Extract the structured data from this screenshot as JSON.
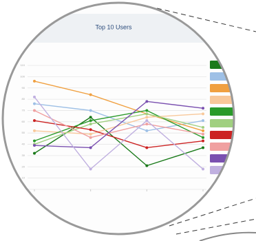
{
  "chart_data": {
    "type": "line",
    "title": "Top 10 Users",
    "categories": [
      null,
      null,
      null,
      null
    ],
    "ylim": [
      0,
      110
    ],
    "yticks": [
      0,
      10,
      20,
      30,
      40,
      50,
      60,
      70,
      80,
      90,
      100,
      110
    ],
    "grid": true,
    "series": [
      {
        "color": "#1a7a1a",
        "values": [
          32,
          64,
          21,
          37
        ]
      },
      {
        "color": "#9ec0e6",
        "values": [
          76,
          70,
          52,
          61
        ]
      },
      {
        "color": "#f0a040",
        "values": [
          96,
          84,
          67,
          52
        ]
      },
      {
        "color": "#f8c89a",
        "values": [
          52,
          49,
          64,
          67
        ]
      },
      {
        "color": "#2a9a2a",
        "values": [
          43,
          61,
          70,
          46
        ]
      },
      {
        "color": "#a0d080",
        "values": [
          40,
          58,
          67,
          55
        ]
      },
      {
        "color": "#cc2222",
        "values": [
          61,
          53,
          37,
          43
        ]
      },
      {
        "color": "#f0a0a0",
        "values": [
          70,
          46,
          58,
          49
        ]
      },
      {
        "color": "#7a50b0",
        "values": [
          39,
          37,
          78,
          72
        ]
      },
      {
        "color": "#c0b0e0",
        "values": [
          82,
          18,
          61,
          18
        ]
      }
    ]
  }
}
